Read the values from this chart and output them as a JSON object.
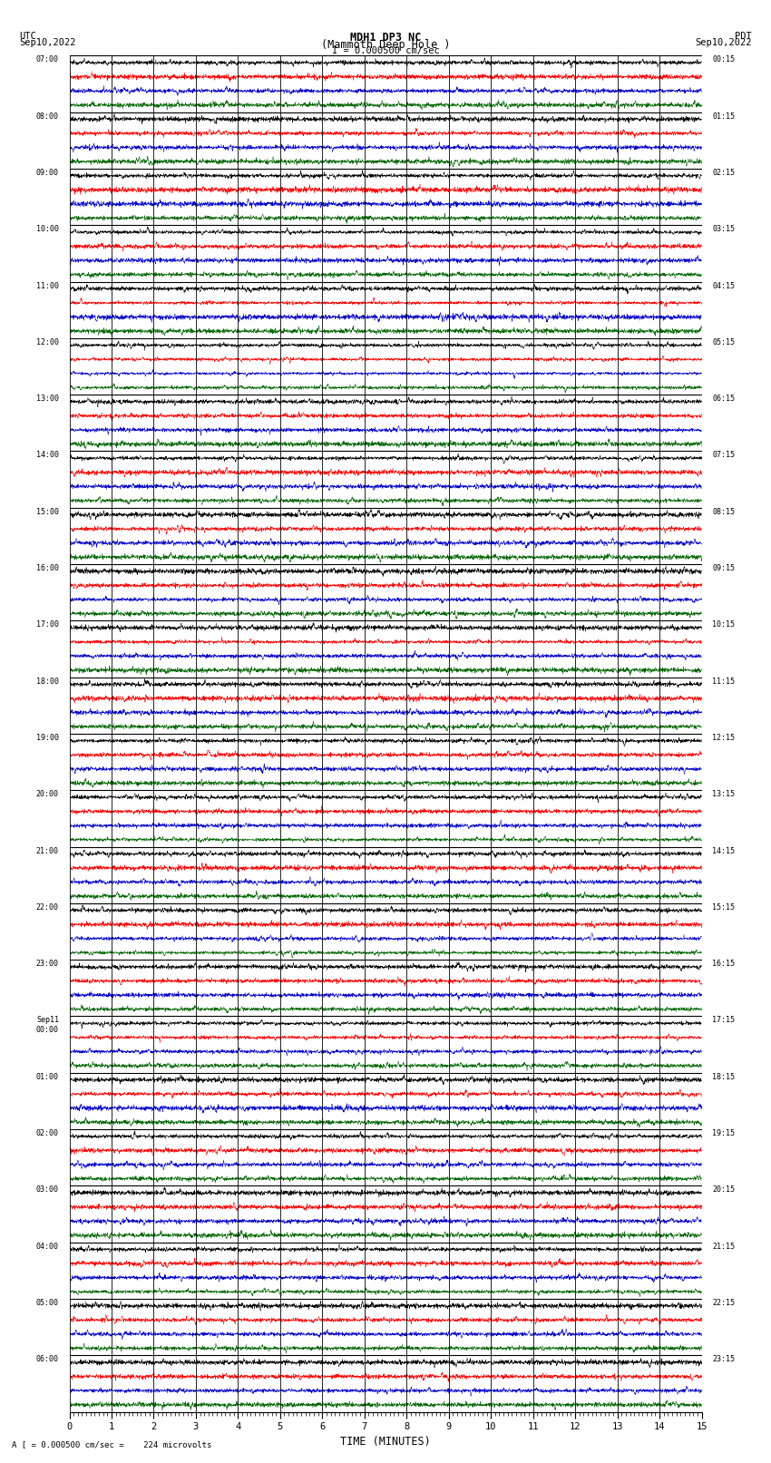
{
  "title_line1": "MDH1 DP3 NC",
  "title_line2": "(Mammoth Deep Hole )",
  "scale_label": "I = 0.000500 cm/sec",
  "left_label": "UTC",
  "right_label": "PDT",
  "left_date": "Sep10,2022",
  "right_date": "Sep10,2022",
  "bottom_label": "TIME (MINUTES)",
  "bottom_note": "A [ = 0.000500 cm/sec =    224 microvolts",
  "utc_times": [
    "07:00",
    "08:00",
    "09:00",
    "10:00",
    "11:00",
    "12:00",
    "13:00",
    "14:00",
    "15:00",
    "16:00",
    "17:00",
    "18:00",
    "19:00",
    "20:00",
    "21:00",
    "22:00",
    "23:00",
    "Sep11\n00:00",
    "01:00",
    "02:00",
    "03:00",
    "04:00",
    "05:00",
    "06:00"
  ],
  "pdt_times": [
    "00:15",
    "01:15",
    "02:15",
    "03:15",
    "04:15",
    "05:15",
    "06:15",
    "07:15",
    "08:15",
    "09:15",
    "10:15",
    "11:15",
    "12:15",
    "13:15",
    "14:15",
    "15:15",
    "16:15",
    "17:15",
    "18:15",
    "19:15",
    "20:15",
    "21:15",
    "22:15",
    "23:15"
  ],
  "n_rows": 24,
  "n_minutes": 15,
  "x_ticks": [
    0,
    1,
    2,
    3,
    4,
    5,
    6,
    7,
    8,
    9,
    10,
    11,
    12,
    13,
    14,
    15
  ],
  "sub_traces": 4,
  "trace_colors": [
    "#000000",
    "#ff0000",
    "#0000cc",
    "#006600"
  ],
  "background_color": "#ffffff",
  "noise_amplitude": 0.006,
  "spike_amplitude": 0.025,
  "trace_linewidth": 0.35
}
